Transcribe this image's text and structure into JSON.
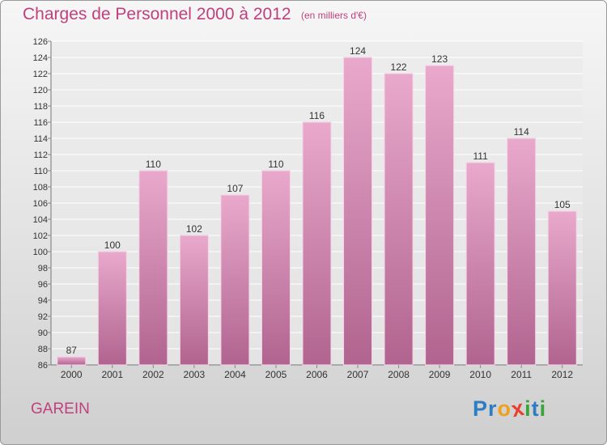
{
  "header": {
    "title": "Charges de Personnel 2000 à 2012",
    "subtitle": "(en milliers d'€)"
  },
  "footer": {
    "town": "GAREIN",
    "logo_letters": [
      "P",
      "r",
      "o",
      "x",
      "i",
      "t",
      "i"
    ]
  },
  "colors": {
    "title": "#c0407e",
    "bar_light": "#e9a9cc",
    "bar_dark": "#b0648f",
    "logo": [
      "#2e7cc4",
      "#2e7cc4",
      "#f0a020",
      "#e8402a",
      "#3aa33a",
      "#2e7cc4",
      "#3aa33a"
    ]
  },
  "chart_data": {
    "type": "bar",
    "title": "Charges de Personnel 2000 à 2012",
    "subtitle": "(en milliers d'€)",
    "categories": [
      "2000",
      "2001",
      "2002",
      "2003",
      "2004",
      "2005",
      "2006",
      "2007",
      "2008",
      "2009",
      "2010",
      "2011",
      "2012"
    ],
    "values": [
      87,
      100,
      110,
      102,
      107,
      110,
      116,
      124,
      122,
      123,
      111,
      114,
      105
    ],
    "ylim": [
      86,
      126
    ],
    "yticks": [
      86,
      88,
      90,
      92,
      94,
      96,
      98,
      100,
      102,
      104,
      106,
      108,
      110,
      112,
      114,
      116,
      118,
      120,
      122,
      124,
      126
    ],
    "grid": true,
    "data_labels": true
  }
}
